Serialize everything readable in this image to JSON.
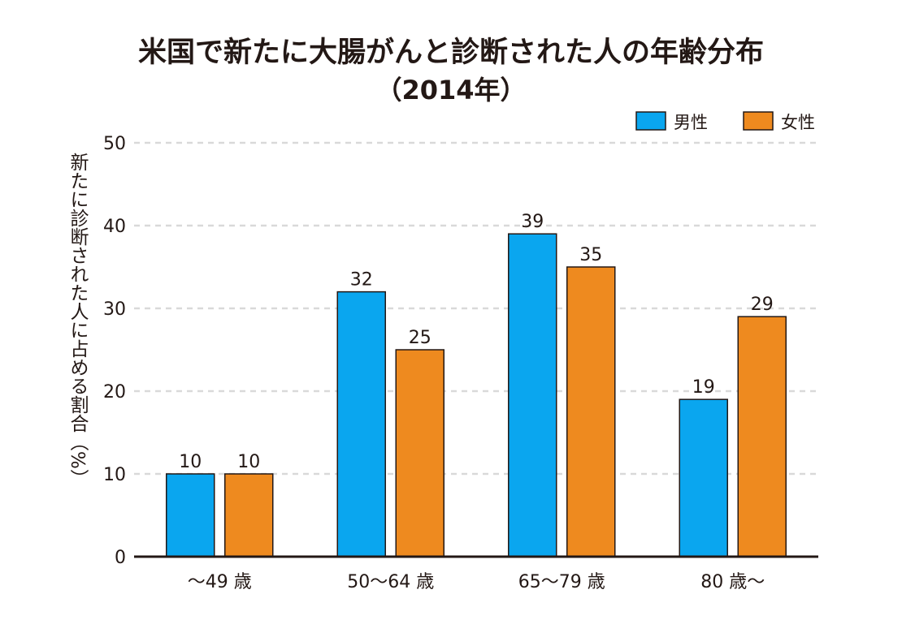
{
  "chart_data": {
    "type": "bar",
    "title": "米国で新たに大腸がんと診断された人の年齢分布",
    "subtitle": "（2014年）",
    "ylabel": "新たに診断された人に占める割合（%）",
    "xlabel": "",
    "categories": [
      "～49 歳",
      "50～64 歳",
      "65～79 歳",
      "80 歳～"
    ],
    "series": [
      {
        "name": "男性",
        "color": "#0aa6ef",
        "values": [
          10,
          32,
          39,
          19
        ]
      },
      {
        "name": "女性",
        "color": "#ee8a1f",
        "values": [
          10,
          25,
          35,
          29
        ]
      }
    ],
    "ylim": [
      0,
      50
    ],
    "yticks": [
      "0",
      "10",
      "20",
      "30",
      "40",
      "50"
    ],
    "grid": true,
    "legend_position": "top-right",
    "data_labels": true
  }
}
